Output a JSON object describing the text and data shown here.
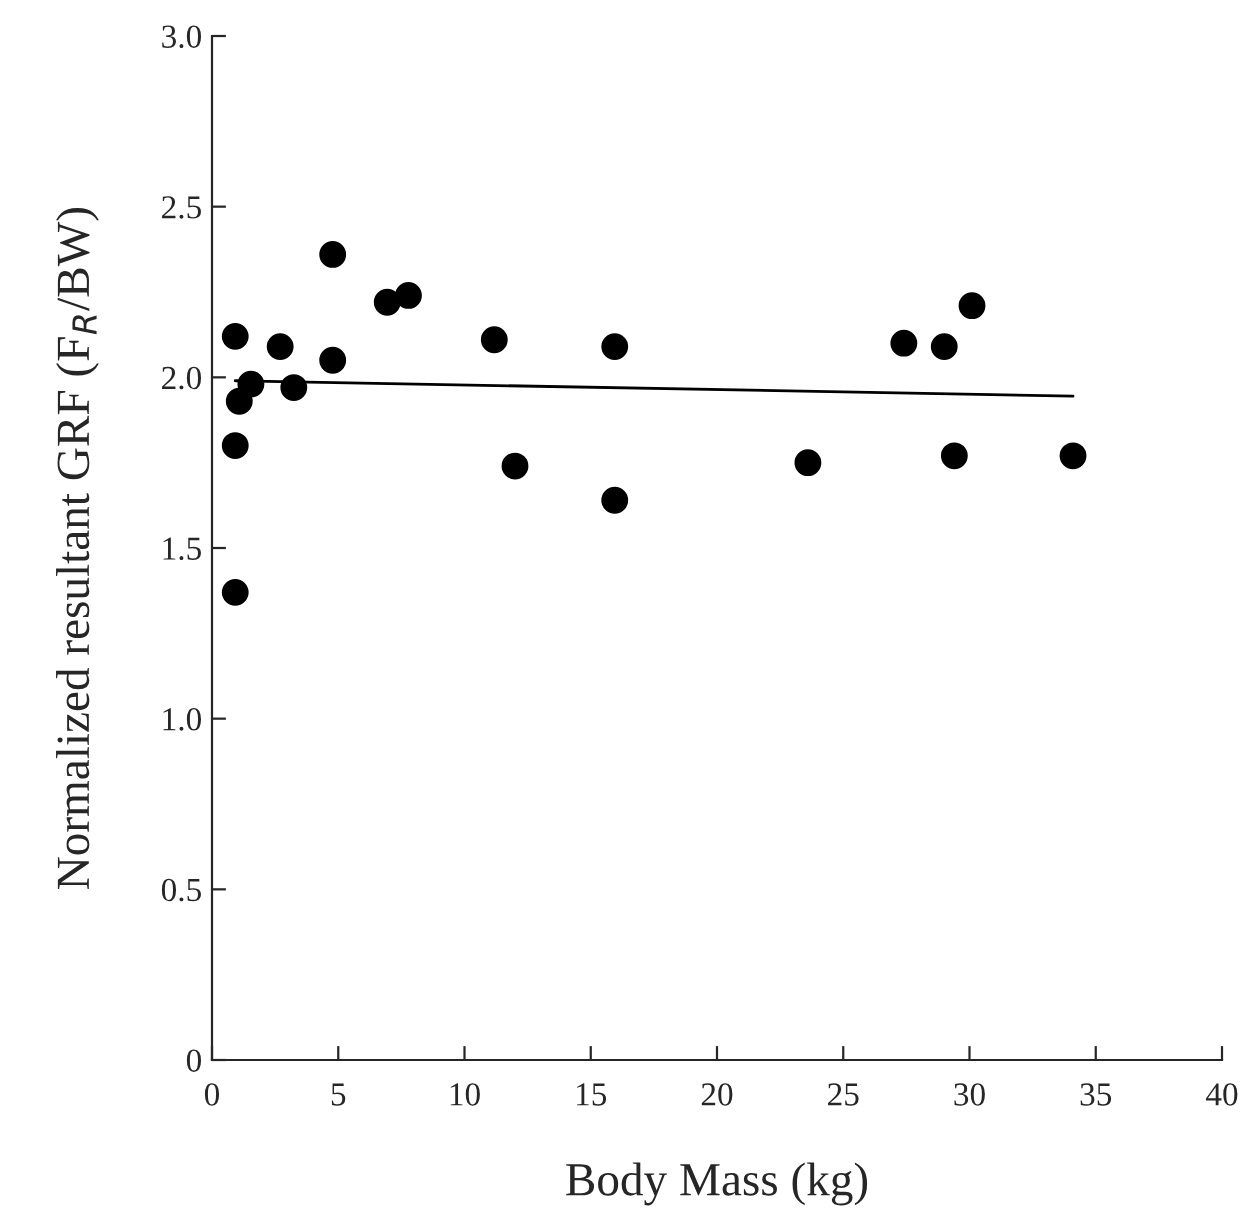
{
  "chart_data": {
    "type": "scatter",
    "xlabel": "Body Mass (kg)",
    "ylabel": "Normalized resultant GRF (F$_{R}$/BW)",
    "series": [
      {
        "marker": "circle",
        "color": "#000000",
        "x": [
          0.92,
          0.92,
          0.92,
          1.08,
          1.54,
          2.7,
          3.24,
          4.78,
          4.78,
          6.94,
          7.78,
          11.18,
          12.0,
          15.95,
          15.95,
          23.6,
          27.4,
          29.0,
          29.4,
          30.1,
          34.1
        ],
        "values": [
          2.12,
          1.8,
          1.37,
          1.93,
          1.98,
          2.09,
          1.97,
          2.36,
          2.05,
          2.22,
          2.24,
          2.11,
          1.74,
          2.09,
          1.64,
          1.75,
          2.1,
          2.09,
          1.77,
          2.21,
          1.77
        ]
      },
      {
        "type": "line",
        "color": "#000000",
        "x": [
          0.92,
          34.1
        ],
        "values": [
          1.99,
          1.945
        ]
      }
    ],
    "xlim": [
      0,
      40
    ],
    "xticks": [
      0,
      5,
      10,
      15,
      20,
      25,
      30,
      35,
      40
    ],
    "ylim": [
      0,
      3.0
    ],
    "yticks": [
      0,
      {
        "value": 0.5,
        "label": "0.5"
      },
      {
        "value": 1.0,
        "label": "1.0"
      },
      {
        "value": 1.5,
        "label": "1.5"
      },
      {
        "value": 2.0,
        "label": "2.0"
      },
      {
        "value": 2.5,
        "label": "2.5"
      },
      {
        "value": 3.0,
        "label": "3.0"
      }
    ],
    "grid": false,
    "legend": false
  }
}
